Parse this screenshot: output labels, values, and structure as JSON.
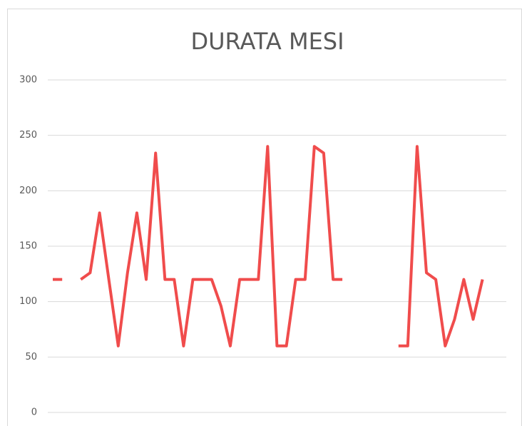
{
  "chart_data": {
    "type": "line",
    "title": "DURATA MESI",
    "categories": [
      null,
      null,
      null,
      null,
      null,
      null,
      null,
      null,
      null,
      null,
      null,
      null,
      null,
      null,
      null,
      null,
      null,
      null,
      null,
      null,
      null,
      null,
      null,
      null,
      null,
      null,
      null,
      null,
      null,
      null,
      null,
      null,
      null,
      null,
      null,
      null,
      null,
      null,
      null,
      null,
      null,
      null,
      null,
      null,
      null,
      null,
      null
    ],
    "series": [
      {
        "name": "DURATA MESI",
        "color": "#f04c4c",
        "values": [
          120,
          120,
          null,
          120,
          126,
          180,
          120,
          60,
          126,
          180,
          120,
          234,
          120,
          120,
          60,
          120,
          120,
          120,
          96,
          60,
          120,
          120,
          120,
          240,
          60,
          60,
          120,
          120,
          240,
          234,
          120,
          120,
          null,
          null,
          null,
          null,
          null,
          60,
          60,
          240,
          126,
          120,
          60,
          84,
          120,
          84,
          120
        ]
      }
    ],
    "ylim": [
      0,
      300
    ],
    "yticks": [
      0,
      50,
      100,
      150,
      200,
      250,
      300
    ],
    "grid": true
  }
}
